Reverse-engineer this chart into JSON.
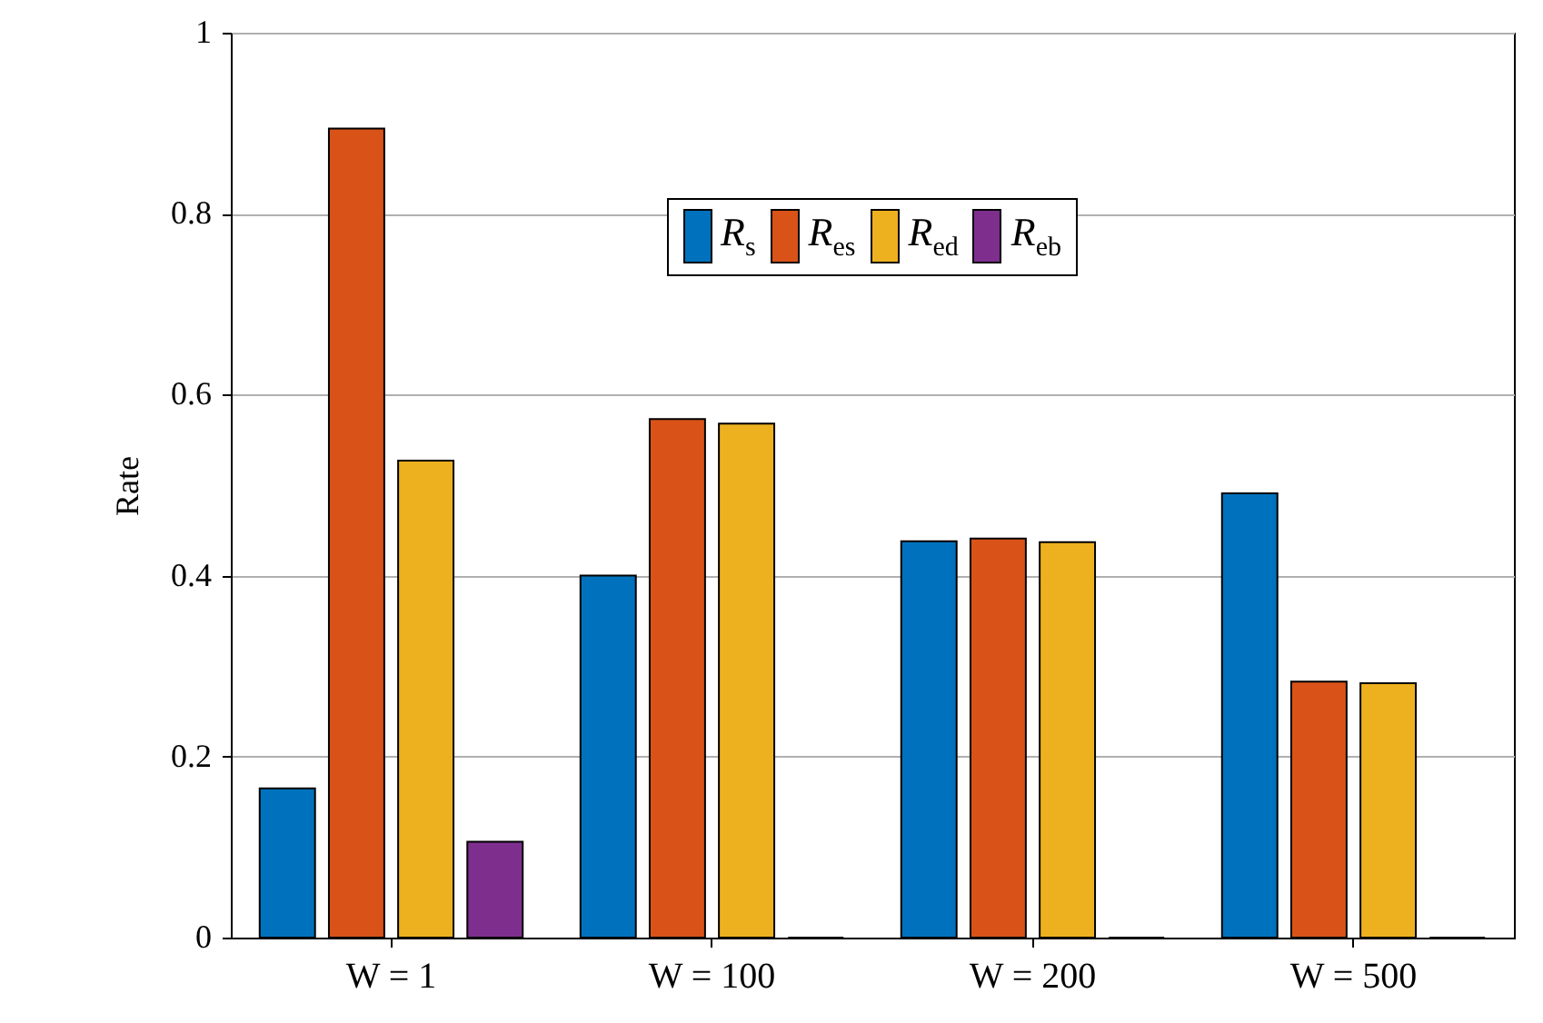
{
  "chart_data": {
    "type": "bar",
    "ylabel": "Rate",
    "categories": [
      "W = 1",
      "W = 100",
      "W = 200",
      "W = 500"
    ],
    "series": [
      {
        "name": "R$_{s}$",
        "color": "#0072bd",
        "values": [
          0.165,
          0.4,
          0.438,
          0.491
        ]
      },
      {
        "name": "R$_{es}$",
        "color": "#d95319",
        "values": [
          0.894,
          0.573,
          0.441,
          0.283
        ]
      },
      {
        "name": "R$_{ed}$",
        "color": "#edb120",
        "values": [
          0.527,
          0.568,
          0.437,
          0.281
        ]
      },
      {
        "name": "R$_{eb}$",
        "color": "#7e2f8e",
        "values": [
          0.106,
          0,
          0,
          0
        ]
      }
    ],
    "ylim": [
      0,
      1
    ],
    "yticks": [
      0,
      0.2,
      0.4,
      0.6,
      0.8,
      1
    ],
    "grid": "y",
    "legend": "top"
  }
}
